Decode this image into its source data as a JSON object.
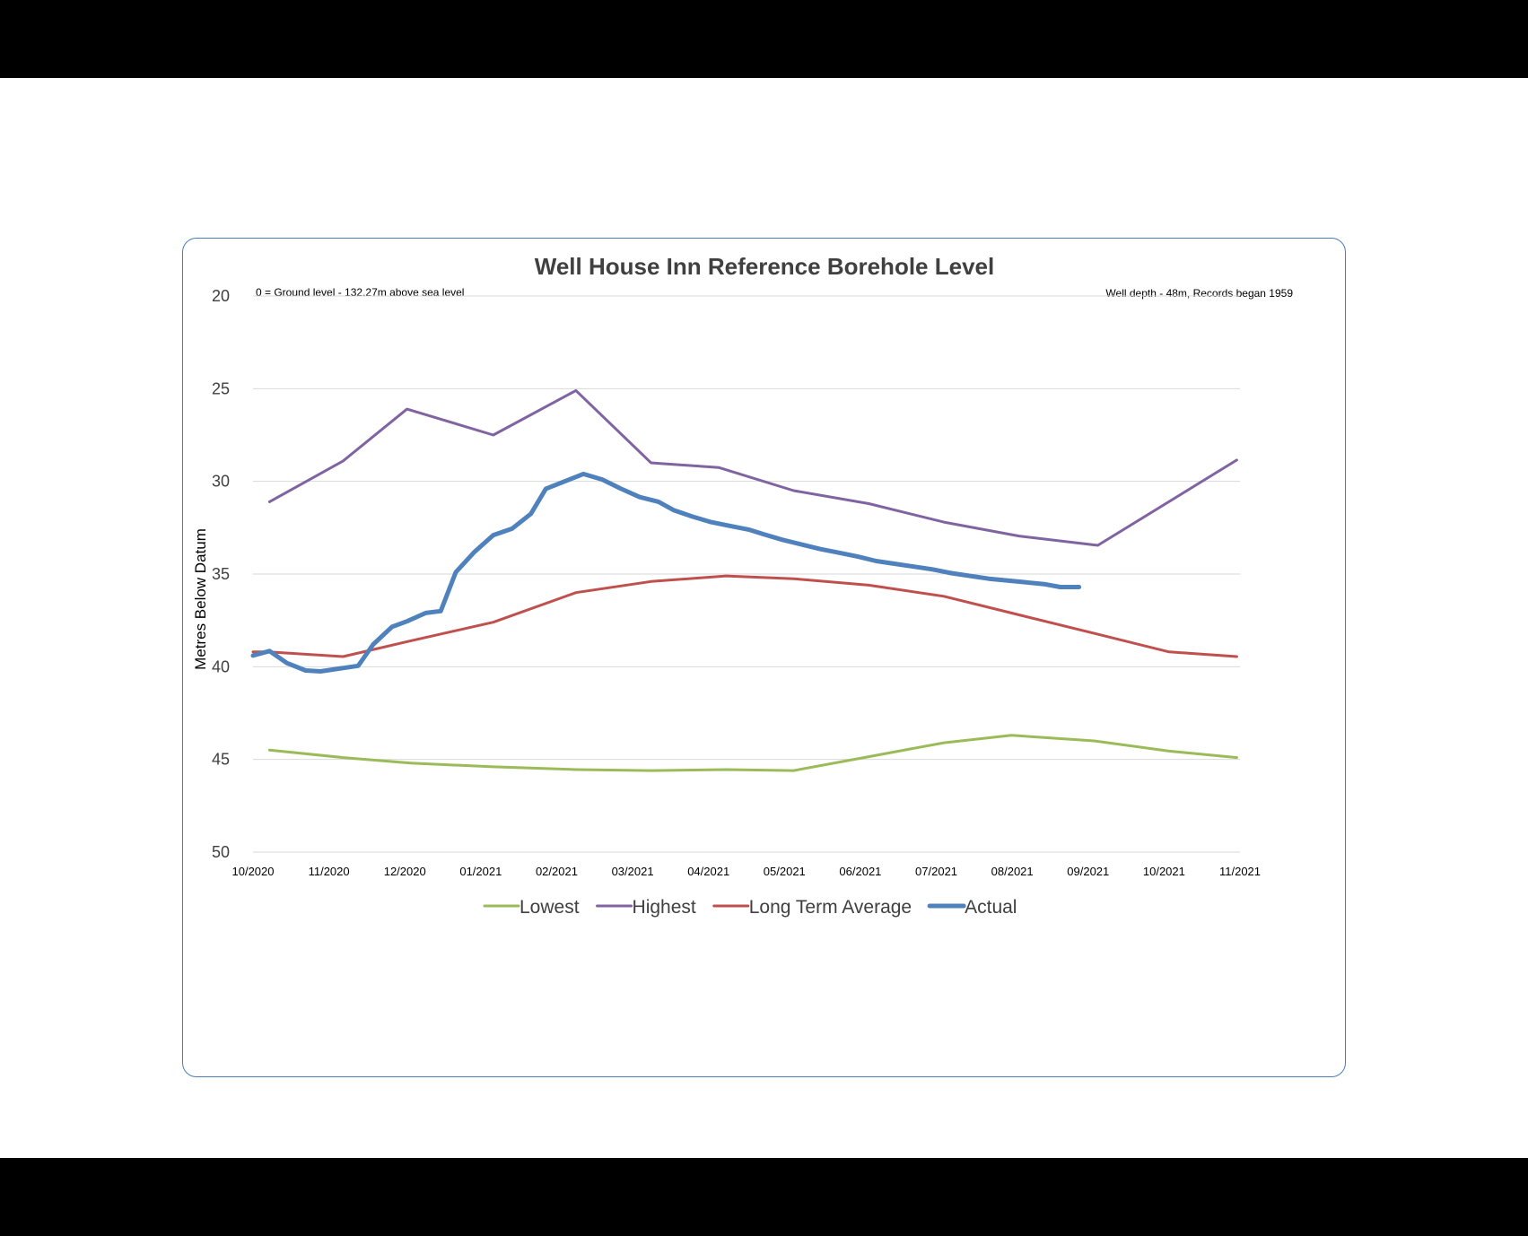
{
  "chart_data": {
    "type": "line",
    "title": "Well House Inn Reference Borehole Level",
    "note_left": "0 = Ground level - 132.27m above sea level",
    "note_right": "Well depth - 48m, Records began 1959",
    "ylabel": "Metres Below Datum",
    "xlabel": "",
    "ylim": [
      20,
      50
    ],
    "y_inverted": true,
    "yticks": [
      "20",
      "25",
      "30",
      "35",
      "40",
      "45",
      "50"
    ],
    "xlim": [
      0,
      13
    ],
    "xticks": [
      "10/2020",
      "11/2020",
      "12/2020",
      "01/2021",
      "02/2021",
      "03/2021",
      "04/2021",
      "05/2021",
      "06/2021",
      "07/2021",
      "08/2021",
      "09/2021",
      "10/2021",
      "11/2021"
    ],
    "grid": true,
    "legend_position": "bottom",
    "series": [
      {
        "name": "Lowest",
        "color": "#9bbb59",
        "x": [
          0.22,
          1.2,
          2.1,
          3.2,
          4.3,
          5.3,
          6.3,
          7.2,
          8.2,
          9.2,
          10.1,
          11.2,
          12.2,
          13.1
        ],
        "y": [
          44.5,
          44.9,
          45.2,
          45.4,
          45.55,
          45.6,
          45.55,
          45.6,
          44.85,
          44.1,
          43.7,
          44.0,
          44.55,
          44.9
        ]
      },
      {
        "name": "Highest",
        "color": "#8064a2",
        "x": [
          0.22,
          1.2,
          2.05,
          3.2,
          4.3,
          5.3,
          6.2,
          7.2,
          8.2,
          9.2,
          10.2,
          11.25,
          13.1
        ],
        "y": [
          31.1,
          28.9,
          26.1,
          27.5,
          25.1,
          29.0,
          29.25,
          30.5,
          31.2,
          32.2,
          32.95,
          33.45,
          28.85
        ]
      },
      {
        "name": "Long Term Average",
        "color": "#c0504d",
        "x": [
          0.0,
          0.2,
          1.2,
          2.1,
          3.2,
          4.3,
          5.3,
          6.3,
          7.2,
          8.2,
          9.2,
          10.2,
          11.2,
          12.2,
          13.1
        ],
        "y": [
          39.2,
          39.2,
          39.45,
          38.6,
          37.6,
          36.0,
          35.4,
          35.1,
          35.25,
          35.6,
          36.2,
          37.2,
          38.2,
          39.2,
          39.45
        ]
      },
      {
        "name": "Actual",
        "color": "#4f81bd",
        "x": [
          0.0,
          0.22,
          0.45,
          0.7,
          0.9,
          1.15,
          1.4,
          1.6,
          1.85,
          2.05,
          2.3,
          2.5,
          2.7,
          2.95,
          3.2,
          3.45,
          3.7,
          3.9,
          4.15,
          4.4,
          4.65,
          4.9,
          5.15,
          5.4,
          5.6,
          5.85,
          6.1,
          6.35,
          6.6,
          6.8,
          7.05,
          7.3,
          7.55,
          7.8,
          8.05,
          8.3,
          8.55,
          8.8,
          9.05,
          9.3,
          9.55,
          9.8,
          10.05,
          10.3,
          10.55,
          10.75,
          11.0
        ],
        "y": [
          39.4,
          39.15,
          39.8,
          40.2,
          40.25,
          40.1,
          39.95,
          38.8,
          37.85,
          37.55,
          37.1,
          37.0,
          34.9,
          33.8,
          32.9,
          32.55,
          31.75,
          30.4,
          30.0,
          29.6,
          29.9,
          30.4,
          30.85,
          31.1,
          31.55,
          31.9,
          32.2,
          32.4,
          32.6,
          32.85,
          33.15,
          33.4,
          33.65,
          33.85,
          34.05,
          34.3,
          34.45,
          34.6,
          34.75,
          34.95,
          35.1,
          35.25,
          35.35,
          35.45,
          35.55,
          35.7,
          35.7
        ]
      }
    ]
  }
}
